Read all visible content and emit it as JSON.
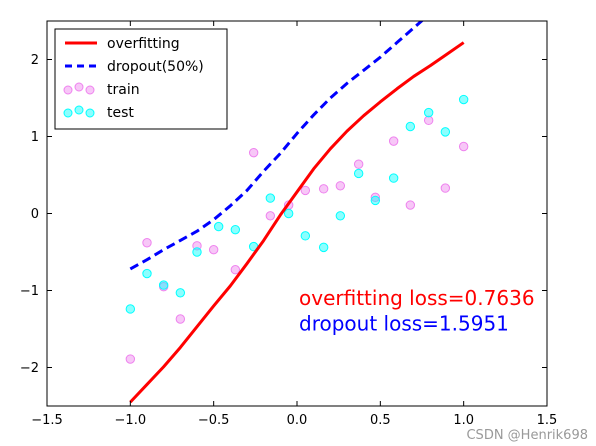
{
  "chart_data": {
    "type": "scatter",
    "title": "",
    "xlabel": "",
    "ylabel": "",
    "xlim": [
      -1.5,
      1.5
    ],
    "ylim": [
      -2.5,
      2.5
    ],
    "xticks": [
      -1.5,
      -1.0,
      -0.5,
      0.0,
      0.5,
      1.0,
      1.5
    ],
    "xtick_labels": [
      "−1.5",
      "−1.0",
      "−0.5",
      "0.0",
      "0.5",
      "1.0",
      "1.5"
    ],
    "yticks": [
      -2,
      -1,
      0,
      1,
      2
    ],
    "ytick_labels": [
      "−2",
      "−1",
      "0",
      "1",
      "2"
    ],
    "grid": false,
    "legend_position": "top-left",
    "series": [
      {
        "name": "overfitting",
        "kind": "line",
        "style": "solid",
        "color": "#ff0000",
        "x": [
          -1.0,
          -0.9,
          -0.8,
          -0.7,
          -0.6,
          -0.5,
          -0.4,
          -0.3,
          -0.2,
          -0.1,
          0.0,
          0.1,
          0.2,
          0.3,
          0.4,
          0.5,
          0.6,
          0.7,
          0.8,
          0.9,
          1.0
        ],
        "y": [
          -2.45,
          -2.22,
          -1.99,
          -1.74,
          -1.47,
          -1.2,
          -0.94,
          -0.65,
          -0.35,
          -0.02,
          0.28,
          0.58,
          0.84,
          1.07,
          1.27,
          1.45,
          1.62,
          1.78,
          1.92,
          2.07,
          2.22
        ]
      },
      {
        "name": "dropout(50%)",
        "kind": "line",
        "style": "dashed",
        "color": "#0000ff",
        "x": [
          -1.0,
          -0.9,
          -0.8,
          -0.7,
          -0.6,
          -0.5,
          -0.4,
          -0.3,
          -0.2,
          -0.1,
          0.0,
          0.1,
          0.2,
          0.3,
          0.4,
          0.5,
          0.6,
          0.7,
          0.8
        ],
        "y": [
          -0.72,
          -0.6,
          -0.47,
          -0.35,
          -0.23,
          -0.08,
          0.1,
          0.3,
          0.55,
          0.78,
          1.04,
          1.28,
          1.5,
          1.69,
          1.86,
          2.03,
          2.22,
          2.41,
          2.6
        ]
      },
      {
        "name": "train",
        "kind": "scatter",
        "color": "#ee82ee",
        "x": [
          -1.0,
          -0.9,
          -0.8,
          -0.7,
          -0.6,
          -0.5,
          -0.37,
          -0.26,
          -0.16,
          -0.05,
          0.05,
          0.16,
          0.26,
          0.37,
          0.47,
          0.58,
          0.68,
          0.79,
          0.89,
          1.0
        ],
        "y": [
          -1.89,
          -0.38,
          -0.95,
          -1.37,
          -0.42,
          -0.47,
          -0.73,
          0.79,
          -0.03,
          0.11,
          0.3,
          0.32,
          0.36,
          0.64,
          0.21,
          0.94,
          0.11,
          1.21,
          0.33,
          0.87
        ]
      },
      {
        "name": "test",
        "kind": "scatter",
        "color": "#00ffff",
        "x": [
          -1.0,
          -0.9,
          -0.8,
          -0.7,
          -0.6,
          -0.47,
          -0.37,
          -0.26,
          -0.16,
          -0.05,
          0.05,
          0.16,
          0.26,
          0.37,
          0.47,
          0.58,
          0.68,
          0.79,
          0.89,
          1.0
        ],
        "y": [
          -1.24,
          -0.78,
          -0.93,
          -1.03,
          -0.5,
          -0.17,
          -0.21,
          -0.43,
          0.2,
          0.0,
          -0.29,
          -0.44,
          -0.03,
          0.52,
          0.17,
          0.46,
          1.13,
          1.31,
          1.06,
          1.48
        ]
      }
    ],
    "annotations": [
      {
        "text": "overfitting loss=0.7636",
        "color": "#ff0000",
        "x": 0.0,
        "y": -1.1
      },
      {
        "text": "dropout loss=1.5951",
        "color": "#0000ff",
        "x": 0.0,
        "y": -1.43
      }
    ]
  },
  "watermark": "CSDN @Henrik698"
}
